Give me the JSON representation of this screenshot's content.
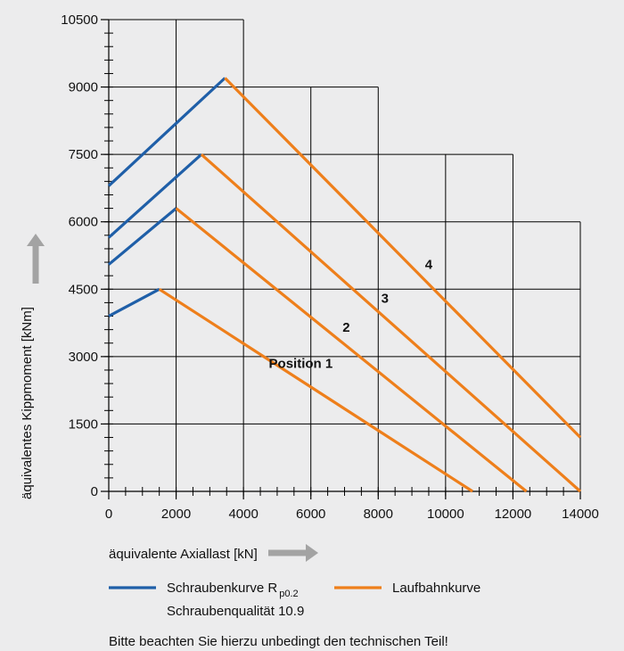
{
  "chart_data": {
    "type": "line",
    "title": "",
    "xlabel": "äquivalente Axiallast [kN]",
    "ylabel": "äquivalentes Kippmoment [kNm]",
    "xlim": [
      0,
      14000
    ],
    "ylim": [
      0,
      10500
    ],
    "x_ticks": [
      0,
      2000,
      4000,
      6000,
      8000,
      10000,
      12000,
      14000
    ],
    "y_ticks": [
      0,
      1500,
      3000,
      4500,
      6000,
      7500,
      9000,
      10500
    ],
    "x_minor_step": 500,
    "y_minor_step": 300,
    "grid": true,
    "legend_position": "bottom",
    "series": [
      {
        "label": "1",
        "kind": "bolt",
        "points": [
          [
            0,
            3900
          ],
          [
            1500,
            4500
          ]
        ]
      },
      {
        "label": "1",
        "kind": "raceway",
        "points": [
          [
            1500,
            4500
          ],
          [
            10800,
            0
          ]
        ]
      },
      {
        "label": "2",
        "kind": "bolt",
        "points": [
          [
            0,
            5050
          ],
          [
            2000,
            6300
          ]
        ]
      },
      {
        "label": "2",
        "kind": "raceway",
        "points": [
          [
            2000,
            6300
          ],
          [
            12400,
            0
          ]
        ]
      },
      {
        "label": "3",
        "kind": "bolt",
        "points": [
          [
            0,
            5650
          ],
          [
            2750,
            7500
          ]
        ]
      },
      {
        "label": "3",
        "kind": "raceway",
        "points": [
          [
            2750,
            7500
          ],
          [
            14000,
            0
          ]
        ]
      },
      {
        "label": "4",
        "kind": "bolt",
        "points": [
          [
            0,
            6800
          ],
          [
            3450,
            9200
          ]
        ]
      },
      {
        "label": "4",
        "kind": "raceway",
        "points": [
          [
            3450,
            9200
          ],
          [
            14000,
            1200
          ]
        ]
      }
    ],
    "annotations": [
      {
        "text": "Position  1",
        "x": 5700,
        "y": 2750
      },
      {
        "text": "2",
        "x": 7050,
        "y": 3550
      },
      {
        "text": "3",
        "x": 8200,
        "y": 4200
      },
      {
        "text": "4",
        "x": 9500,
        "y": 4950
      }
    ],
    "legend": [
      {
        "kind": "bolt",
        "label_main": "Schraubenkurve  R",
        "label_sub": "p0.2",
        "label_line2": "Schraubenqualität 10.9"
      },
      {
        "kind": "raceway",
        "label_main": "Laufbahnkurve"
      }
    ],
    "footnote": "Bitte beachten Sie hierzu unbedingt den technischen Teil!"
  },
  "colors": {
    "background": "#ececed",
    "bolt": "#1f5fa8",
    "raceway": "#ee7f1b",
    "grid": "#000000",
    "arrow": "#a3a3a3"
  },
  "icons": {
    "y_arrow": "arrow-up-icon",
    "x_arrow": "arrow-right-icon"
  }
}
